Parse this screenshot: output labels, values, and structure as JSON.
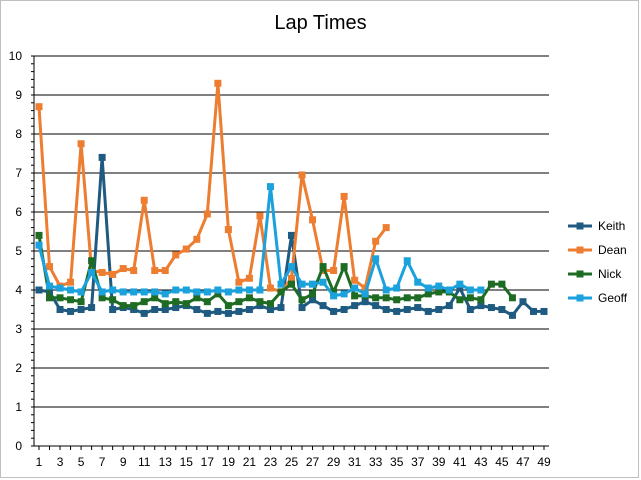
{
  "chart_data": {
    "type": "line",
    "title": "Lap Times",
    "xlabel": "",
    "ylabel": "",
    "ylim": [
      0,
      10
    ],
    "yticks": [
      0,
      1,
      2,
      3,
      4,
      5,
      6,
      7,
      8,
      9,
      10
    ],
    "x": [
      1,
      2,
      3,
      4,
      5,
      6,
      7,
      8,
      9,
      10,
      11,
      12,
      13,
      14,
      15,
      16,
      17,
      18,
      19,
      20,
      21,
      22,
      23,
      24,
      25,
      26,
      27,
      28,
      29,
      30,
      31,
      32,
      33,
      34,
      35,
      36,
      37,
      38,
      39,
      40,
      41,
      42,
      43,
      44,
      45,
      46,
      47,
      48,
      49
    ],
    "xtick_labels": [
      "1",
      "3",
      "5",
      "7",
      "9",
      "11",
      "13",
      "15",
      "17",
      "19",
      "21",
      "23",
      "25",
      "27",
      "29",
      "31",
      "33",
      "35",
      "37",
      "39",
      "41",
      "43",
      "45",
      "47",
      "49"
    ],
    "grid": "horizontal",
    "legend": "right",
    "series": [
      {
        "name": "Keith",
        "color": "#1f5a80",
        "values": [
          4.0,
          3.95,
          3.5,
          3.45,
          3.5,
          3.55,
          7.4,
          3.5,
          3.55,
          3.5,
          3.4,
          3.5,
          3.5,
          3.55,
          3.6,
          3.5,
          3.4,
          3.45,
          3.4,
          3.45,
          3.5,
          3.6,
          3.5,
          3.55,
          5.4,
          3.55,
          3.75,
          3.6,
          3.45,
          3.5,
          3.6,
          3.7,
          3.6,
          3.5,
          3.45,
          3.5,
          3.55,
          3.45,
          3.5,
          3.6,
          4.05,
          3.5,
          3.6,
          3.55,
          3.5,
          3.35,
          3.7,
          3.45,
          3.45
        ]
      },
      {
        "name": "Dean",
        "color": "#ed7d31",
        "values": [
          8.7,
          4.6,
          4.1,
          4.2,
          7.75,
          4.5,
          4.45,
          4.4,
          4.55,
          4.5,
          6.3,
          4.5,
          4.5,
          4.9,
          5.05,
          5.3,
          5.95,
          9.3,
          5.55,
          4.2,
          4.3,
          5.9,
          4.05,
          3.95,
          4.3,
          6.95,
          5.8,
          4.5,
          4.5,
          6.4,
          4.25,
          4.05,
          5.25,
          5.6,
          null,
          null,
          null,
          null,
          null,
          null,
          null,
          null,
          null,
          null,
          null,
          null,
          null,
          null,
          null
        ]
      },
      {
        "name": "Nick",
        "color": "#1e6b23",
        "values": [
          5.4,
          3.8,
          3.8,
          3.75,
          3.7,
          4.75,
          3.8,
          3.75,
          3.6,
          3.6,
          3.7,
          3.8,
          3.65,
          3.7,
          3.65,
          3.8,
          3.7,
          3.9,
          3.6,
          3.7,
          3.8,
          3.7,
          3.65,
          3.95,
          4.15,
          3.75,
          3.9,
          4.6,
          3.95,
          4.6,
          3.85,
          3.85,
          3.8,
          3.8,
          3.75,
          3.8,
          3.8,
          3.9,
          3.95,
          3.95,
          3.75,
          3.8,
          3.75,
          4.15,
          4.15,
          3.8,
          null,
          null,
          null
        ]
      },
      {
        "name": "Geoff",
        "color": "#1ba1dc",
        "values": [
          5.15,
          4.1,
          4.05,
          4.0,
          3.95,
          4.45,
          3.95,
          4.0,
          3.95,
          3.95,
          3.95,
          3.95,
          3.9,
          4.0,
          4.0,
          3.95,
          3.95,
          4.0,
          3.95,
          4.0,
          4.0,
          4.0,
          6.65,
          4.15,
          4.6,
          4.15,
          4.15,
          4.2,
          3.85,
          3.9,
          4.05,
          3.9,
          4.8,
          4.0,
          4.05,
          4.75,
          4.2,
          4.05,
          4.1,
          4.0,
          4.15,
          4.0,
          4.0,
          null,
          null,
          null,
          null,
          null,
          null
        ]
      }
    ]
  }
}
